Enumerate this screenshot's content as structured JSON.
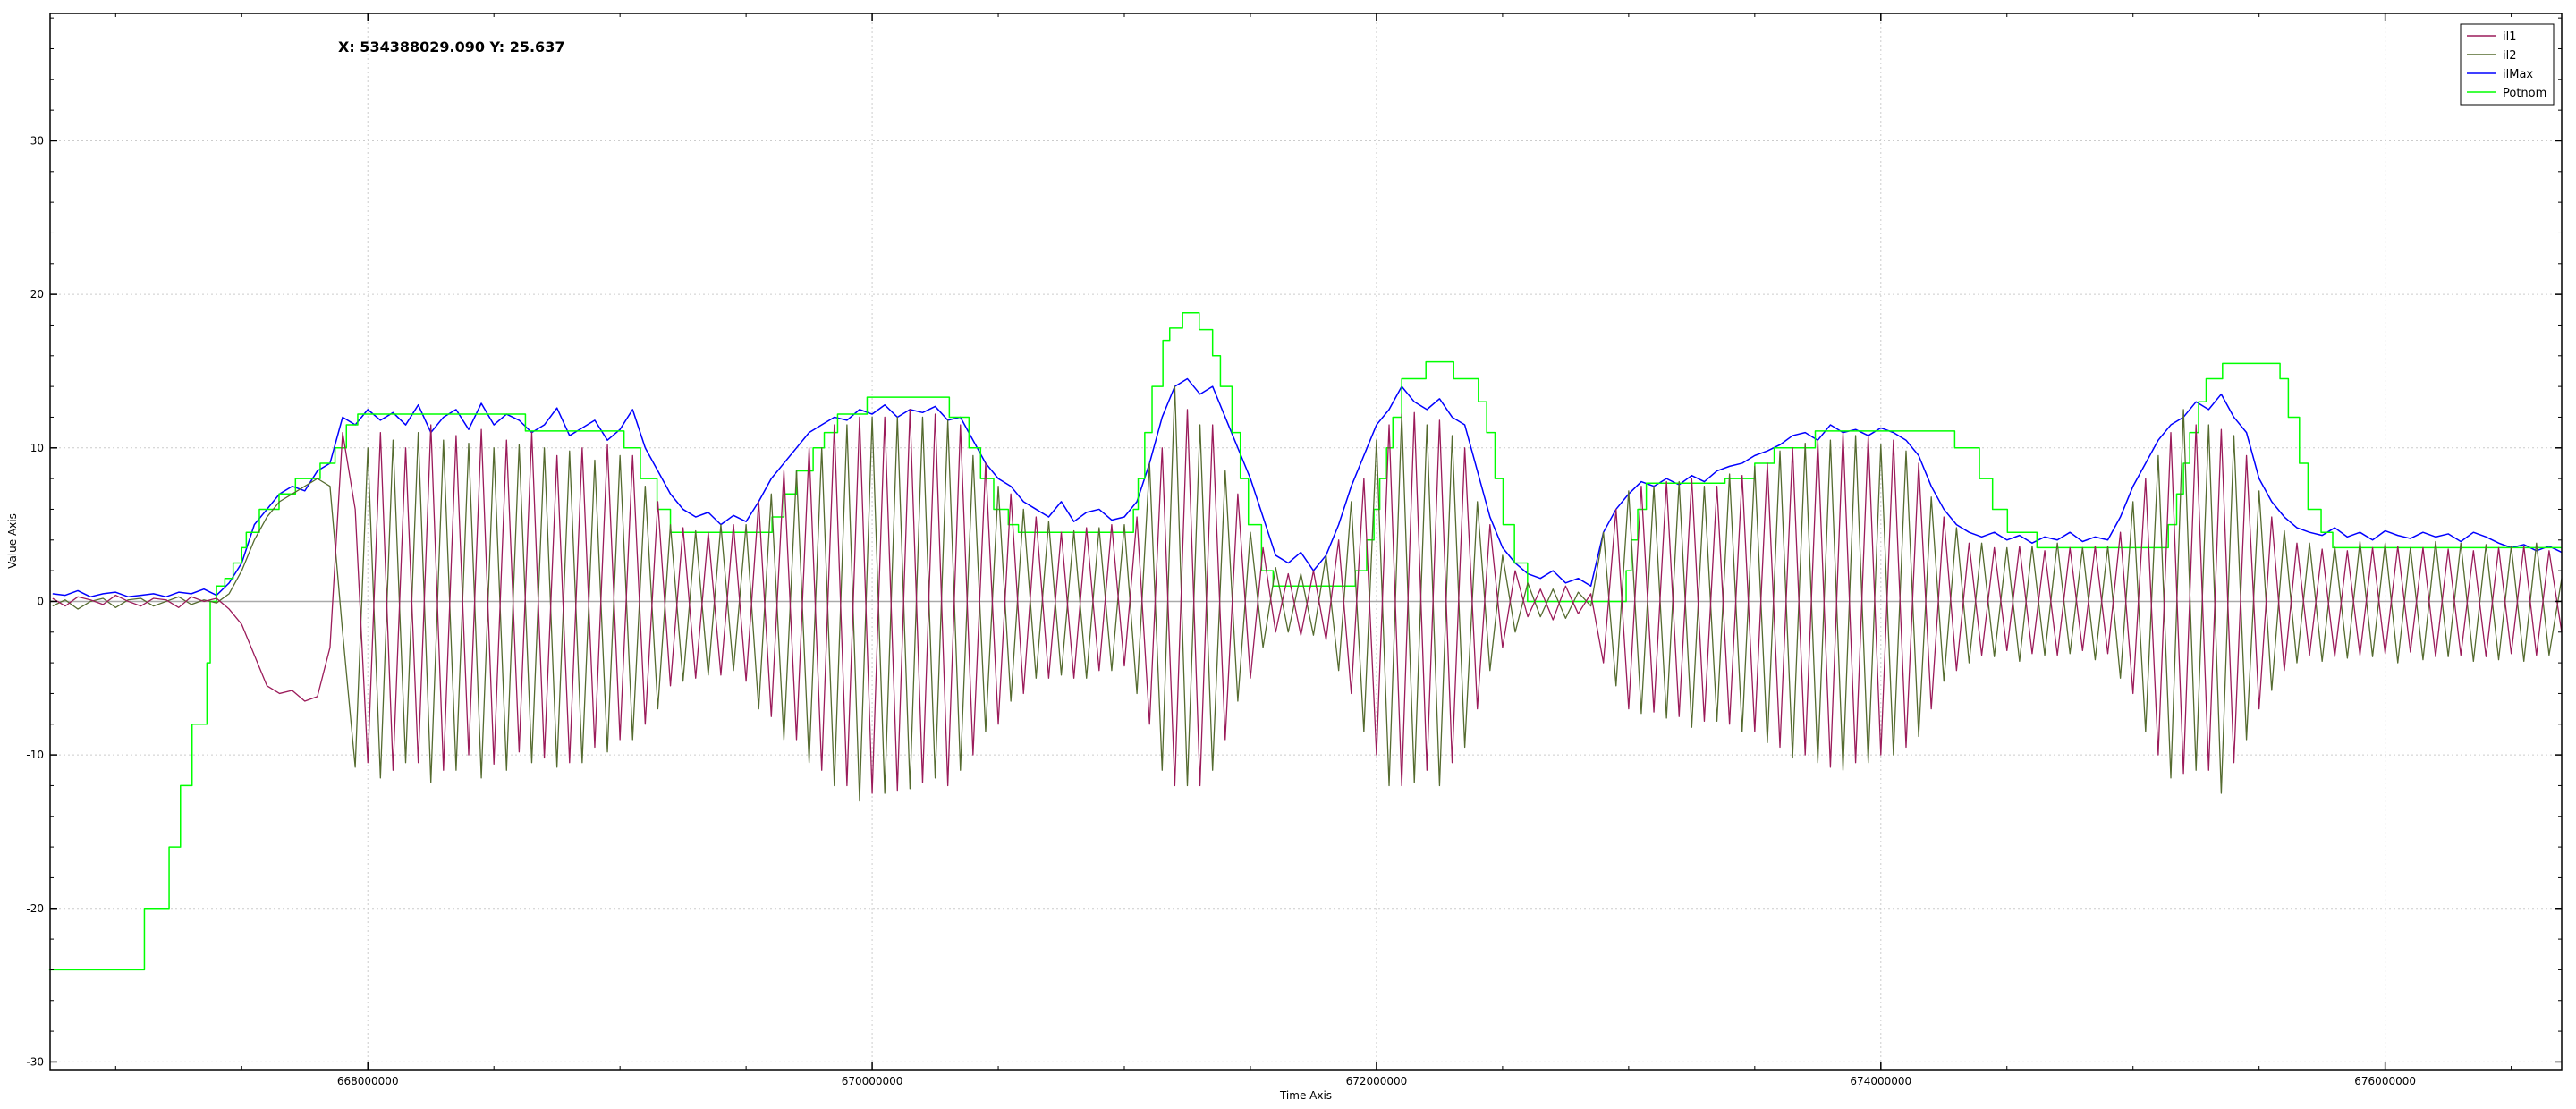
{
  "chart_data": {
    "type": "line",
    "title": "",
    "cursor_readout": "X: 534388029.090 Y: 25.637",
    "xlabel": "Time Axis",
    "ylabel": "Value Axis",
    "xlim": [
      666740000,
      676700000
    ],
    "ylim": [
      -30.5,
      38.3
    ],
    "xticks": [
      668000000,
      670000000,
      672000000,
      674000000,
      676000000
    ],
    "yticks": [
      -30,
      -20,
      -10,
      0,
      10,
      20,
      30
    ],
    "grid": true,
    "legend_position": "top-right",
    "sample_x_start": 666750000,
    "sample_x_step": 50000,
    "series": [
      {
        "name": "il1",
        "color": "#9b1b5a",
        "values": [
          0.2,
          -0.3,
          0.3,
          0.1,
          -0.2,
          0.4,
          0,
          -0.3,
          0.2,
          0.1,
          -0.4,
          0.3,
          0,
          0.2,
          -0.5,
          -1.5,
          -3.5,
          -5.5,
          -6,
          -5.8,
          -6.5,
          -6.2,
          -3,
          11,
          6,
          -10.5,
          11,
          -11,
          10,
          -10.5,
          11.5,
          -11,
          10.8,
          -10,
          11.2,
          -10.6,
          10.5,
          -9.8,
          11,
          -10.2,
          9.5,
          -10.5,
          10,
          -9.5,
          10.2,
          -9,
          9.5,
          -8,
          6.5,
          -5.5,
          4.8,
          -5,
          4.5,
          -4.8,
          5,
          -5.2,
          6.5,
          -7.5,
          8.5,
          -9,
          10,
          -11,
          11.5,
          -12,
          12,
          -12.5,
          12,
          -12.3,
          12.5,
          -11.8,
          12.2,
          -12,
          11.5,
          -10,
          9,
          -8,
          7,
          -6,
          5.5,
          -5,
          4.5,
          -5,
          4.8,
          -4.5,
          5,
          -4.2,
          5.5,
          -8,
          10,
          -12,
          12.5,
          -12,
          11.5,
          -9,
          7,
          -5,
          3.5,
          -2,
          1.8,
          -2.2,
          2,
          -2.5,
          4,
          -6,
          8,
          -10,
          11.5,
          -12,
          12.3,
          -11,
          11.8,
          -10.5,
          10,
          -7,
          5,
          -3,
          2,
          -1,
          0.8,
          -1.2,
          1,
          -0.8,
          0.5,
          -4,
          6,
          -7,
          7.5,
          -7.2,
          7.8,
          -7.5,
          8,
          -7.8,
          7.5,
          -8,
          8.2,
          -8.5,
          9,
          -9.5,
          10,
          -10,
          10.5,
          -10.8,
          11,
          -10.5,
          10.8,
          -10,
          10.5,
          -9.5,
          9,
          -7,
          5.5,
          -4.5,
          3.8,
          -3.5,
          3.5,
          -3.2,
          3.6,
          -3.4,
          3.3,
          -3.5,
          3.5,
          -3.2,
          3.6,
          -3.4,
          4.5,
          -6,
          8,
          -10,
          11,
          -11.2,
          11.5,
          -11,
          11.2,
          -10.5,
          9.5,
          -7,
          5.5,
          -4.5,
          3.8,
          -3.5,
          3.4,
          -3.6,
          3.3,
          -3.5,
          3.5,
          -3.4,
          3.6,
          -3.3,
          3.5,
          -3.6,
          3.4,
          -3.5,
          3.3,
          -3.6,
          3.5,
          -3.4,
          3.6,
          -3.5,
          3.3,
          -2
        ]
      },
      {
        "name": "il2",
        "color": "#556b2f",
        "values": [
          -0.3,
          0.1,
          -0.5,
          0,
          0.2,
          -0.4,
          0.1,
          0.2,
          -0.3,
          0,
          0.3,
          -0.2,
          0.1,
          -0.1,
          0.5,
          2,
          4,
          5.5,
          6.5,
          7,
          7.5,
          8,
          7.5,
          -2,
          -10.8,
          10,
          -11.5,
          10.5,
          -10.5,
          11,
          -11.8,
          10.5,
          -11,
          10.3,
          -11.5,
          10,
          -11,
          10.2,
          -10.5,
          10,
          -10.8,
          9.8,
          -10.5,
          9.2,
          -9.8,
          9.5,
          -9,
          7.5,
          -7,
          5,
          -5.2,
          4.6,
          -4.8,
          5,
          -4.5,
          5,
          -7,
          7,
          -9,
          8.5,
          -10.5,
          10,
          -12,
          11.5,
          -13,
          12,
          -12.5,
          12,
          -12.2,
          12,
          -11.5,
          11.8,
          -11,
          9.5,
          -8.5,
          7.5,
          -6.5,
          6,
          -5,
          5.2,
          -4.8,
          4.6,
          -5,
          4.8,
          -4.5,
          5,
          -6,
          9,
          -11,
          14,
          -12,
          11.5,
          -11,
          8.5,
          -6.5,
          4.5,
          -3,
          2.2,
          -2,
          1.8,
          -2.2,
          3,
          -4.5,
          6.5,
          -8.5,
          10.5,
          -12,
          12.2,
          -11.8,
          11.5,
          -12,
          10.8,
          -9.5,
          6.5,
          -4.5,
          3,
          -2,
          1.2,
          -1,
          0.8,
          -1.1,
          0.6,
          -0.3,
          4.5,
          -5.5,
          7.2,
          -7.3,
          7.5,
          -7.6,
          7.8,
          -8.2,
          7.5,
          -7.8,
          8.3,
          -8.5,
          8.8,
          -9.2,
          9.8,
          -10.2,
          10.3,
          -10.5,
          10.5,
          -11,
          10.8,
          -10.5,
          10.2,
          -10,
          9.8,
          -8.8,
          6.8,
          -5.2,
          4.8,
          -4,
          3.8,
          -3.6,
          3.5,
          -3.9,
          3.6,
          -3.5,
          3.8,
          -3.4,
          3.5,
          -3.8,
          3.6,
          -5,
          6.5,
          -8.5,
          9.5,
          -11.5,
          12.5,
          -11,
          11.5,
          -12.5,
          10.8,
          -9,
          7.2,
          -5.8,
          4.6,
          -4,
          3.8,
          -3.9,
          3.6,
          -3.7,
          3.9,
          -3.6,
          3.8,
          -4,
          3.5,
          -3.8,
          3.9,
          -3.6,
          3.8,
          -3.9,
          3.7,
          -3.8,
          3.6,
          -3.9,
          3.8,
          -3.5,
          1.5
        ]
      },
      {
        "name": "ilMax",
        "color": "#0000ff",
        "values": [
          0.5,
          0.4,
          0.7,
          0.3,
          0.5,
          0.6,
          0.3,
          0.4,
          0.5,
          0.3,
          0.6,
          0.5,
          0.8,
          0.4,
          1.2,
          2.5,
          5,
          6,
          7,
          7.5,
          7.2,
          8.5,
          9,
          12,
          11.5,
          12.5,
          11.8,
          12.3,
          11.5,
          12.8,
          11,
          12,
          12.5,
          11.2,
          12.9,
          11.5,
          12.2,
          11.8,
          11,
          11.5,
          12.6,
          10.8,
          11.3,
          11.8,
          10.5,
          11.2,
          12.5,
          10,
          8.5,
          7,
          6,
          5.5,
          5.8,
          5,
          5.6,
          5.2,
          6.5,
          8,
          9,
          10,
          11,
          11.5,
          12,
          11.8,
          12.5,
          12.2,
          12.8,
          12,
          12.5,
          12.3,
          12.7,
          11.8,
          12,
          10.5,
          9,
          8,
          7.5,
          6.5,
          6,
          5.5,
          6.5,
          5.2,
          5.8,
          6,
          5.3,
          5.5,
          6.5,
          9,
          12,
          14,
          14.5,
          13.5,
          14,
          12,
          10,
          8,
          5.5,
          3,
          2.5,
          3.2,
          2,
          3,
          5,
          7.5,
          9.5,
          11.5,
          12.5,
          14,
          13,
          12.5,
          13.2,
          12,
          11.5,
          8.5,
          5.5,
          3.5,
          2.5,
          1.8,
          1.5,
          2,
          1.2,
          1.5,
          1,
          4.5,
          6,
          7,
          7.8,
          7.5,
          8,
          7.6,
          8.2,
          7.8,
          8.5,
          8.8,
          9,
          9.5,
          9.8,
          10.2,
          10.8,
          11,
          10.5,
          11.5,
          11,
          11.2,
          10.8,
          11.3,
          11,
          10.5,
          9.5,
          7.5,
          6,
          5,
          4.5,
          4.2,
          4.5,
          4,
          4.3,
          3.8,
          4.2,
          4,
          4.5,
          3.9,
          4.2,
          4,
          5.5,
          7.5,
          9,
          10.5,
          11.5,
          12,
          13,
          12.5,
          13.5,
          12,
          11,
          8,
          6.5,
          5.5,
          4.8,
          4.5,
          4.3,
          4.8,
          4.2,
          4.5,
          4,
          4.6,
          4.3,
          4.1,
          4.5,
          4.2,
          4.4,
          3.9,
          4.5,
          4.2,
          3.8,
          3.5,
          3.7,
          3.3,
          3.6,
          3.2
        ]
      },
      {
        "name": "Potnom",
        "color": "#00ff00",
        "step": true,
        "x": [
          666736000,
          667114000,
          667212000,
          667257000,
          667303000,
          667362000,
          667375000,
          667400000,
          667433000,
          667466000,
          667500000,
          667518000,
          667570000,
          667648000,
          667713000,
          667811000,
          667870000,
          667915000,
          667960000,
          668625000,
          669016000,
          669081000,
          669147000,
          669200000,
          669603000,
          669650000,
          669700000,
          669766000,
          669810000,
          669863000,
          669980000,
          670306000,
          670384000,
          670430000,
          670482000,
          670540000,
          670580000,
          671036000,
          671055000,
          671081000,
          671110000,
          671153000,
          671180000,
          671231000,
          671297000,
          671350000,
          671381000,
          671427000,
          671460000,
          671492000,
          671544000,
          671590000,
          671916000,
          671961000,
          671990000,
          672013000,
          672040000,
          672065000,
          672100000,
          672196000,
          672306000,
          672404000,
          672437000,
          672470000,
          672502000,
          672547000,
          672599000,
          672990000,
          673010000,
          673036000,
          673070000,
          673382000,
          673500000,
          673577000,
          673740000,
          674293000,
          674391000,
          674443000,
          674502000,
          674619000,
          675140000,
          675173000,
          675200000,
          675225000,
          675260000,
          675290000,
          675355000,
          675583000,
          675616000,
          675660000,
          675694000,
          675746000,
          675792000,
          676698000
        ],
        "y": [
          -24,
          -20,
          -16,
          -12,
          -8,
          -4,
          0,
          1,
          1.5,
          2.5,
          3.5,
          4.5,
          6,
          7,
          8,
          9,
          10,
          11.5,
          12.2,
          11.1,
          10,
          8,
          6,
          4.5,
          5.5,
          7,
          8.5,
          10,
          11,
          12.2,
          13.3,
          12,
          10,
          8,
          6,
          5,
          4.5,
          6,
          8,
          11,
          14,
          17,
          17.8,
          18.8,
          17.7,
          16,
          14,
          11,
          8,
          5,
          2,
          1,
          2,
          4,
          6,
          8,
          10,
          12,
          14.5,
          15.6,
          14.5,
          13,
          11,
          8,
          5,
          2.5,
          0,
          2,
          4,
          6,
          7.7,
          8,
          9,
          10,
          11.1,
          10,
          8,
          6,
          4.5,
          3.5,
          5,
          7,
          9,
          11,
          13,
          14.5,
          15.5,
          14.5,
          12,
          9,
          6,
          4.5,
          3.5,
          3.5
        ]
      }
    ]
  }
}
